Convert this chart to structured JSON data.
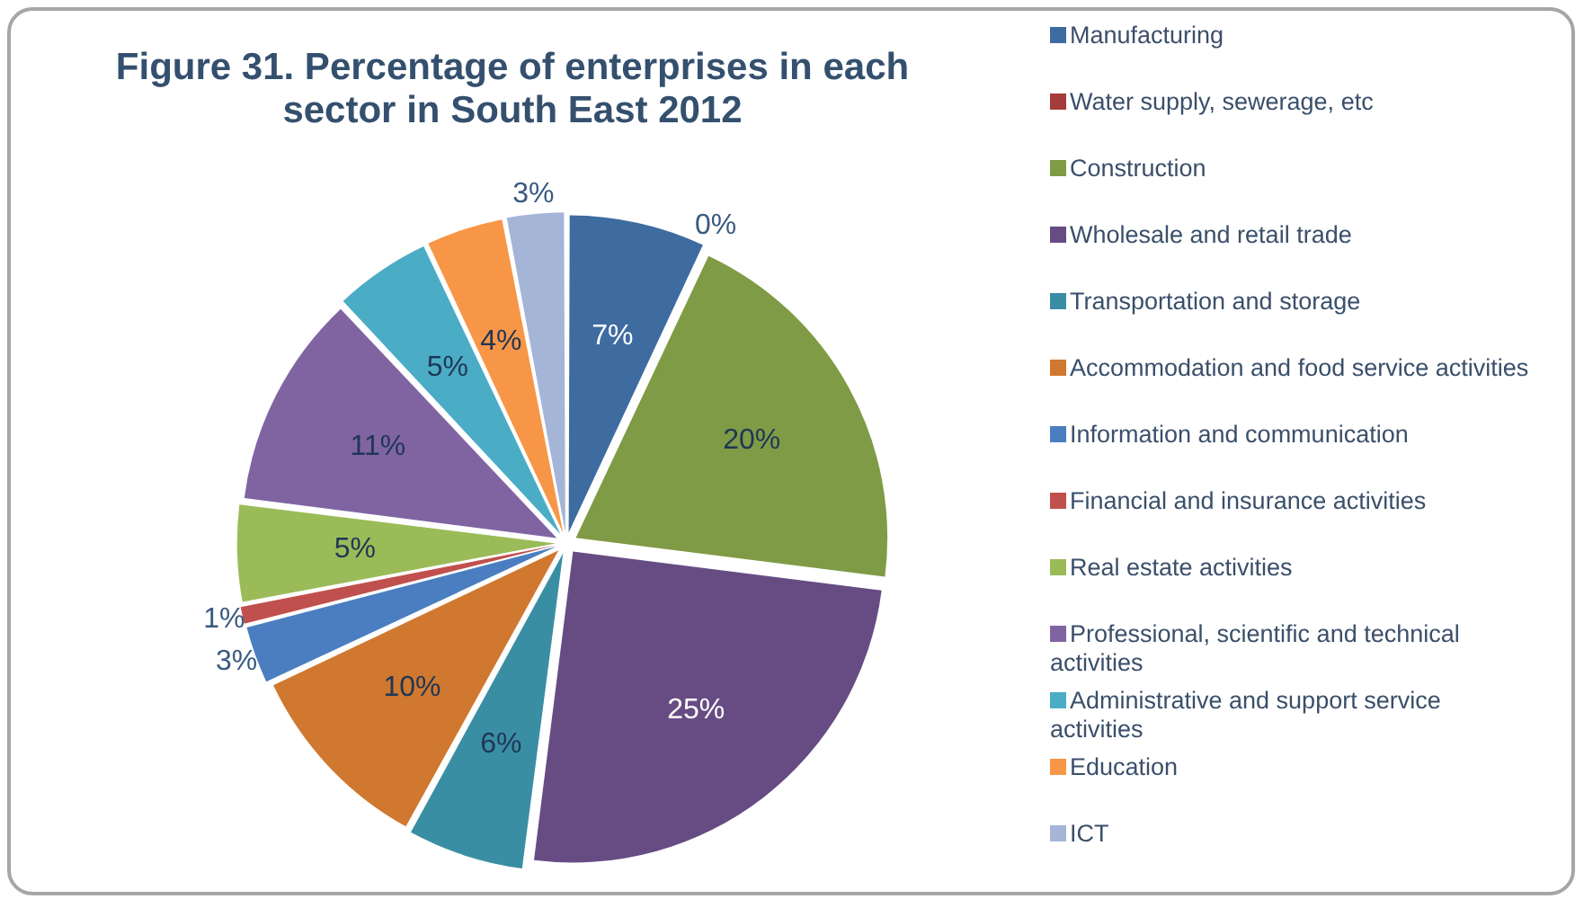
{
  "chart_data": {
    "type": "pie",
    "title": "Figure 31. Percentage of enterprises in each sector in South East 2012",
    "categories": [
      "Manufacturing",
      "Water supply, sewerage, etc",
      "Construction",
      "Wholesale and retail trade",
      "Transportation and storage",
      "Accommodation and food service activities",
      "Information and communication",
      "Financial and insurance activities",
      "Real estate activities",
      "Professional, scientific and technical activities",
      "Administrative and support service activities",
      "Education",
      "ICT"
    ],
    "values": [
      7,
      0,
      20,
      25,
      6,
      10,
      3,
      1,
      5,
      11,
      5,
      4,
      3
    ],
    "colors": [
      "#3e6ba0",
      "#a33c3a",
      "#7f9b45",
      "#674c84",
      "#3a8ea3",
      "#d0782f",
      "#4a7ec0",
      "#c0504d",
      "#9bbb59",
      "#8064a2",
      "#4bacc6",
      "#f79646",
      "#a5b5d8"
    ],
    "value_labels": [
      "7%",
      "0%",
      "20%",
      "25%",
      "6%",
      "10%",
      "3%",
      "1%",
      "5%",
      "11%",
      "5%",
      "4%",
      "3%"
    ],
    "legend": "right"
  }
}
